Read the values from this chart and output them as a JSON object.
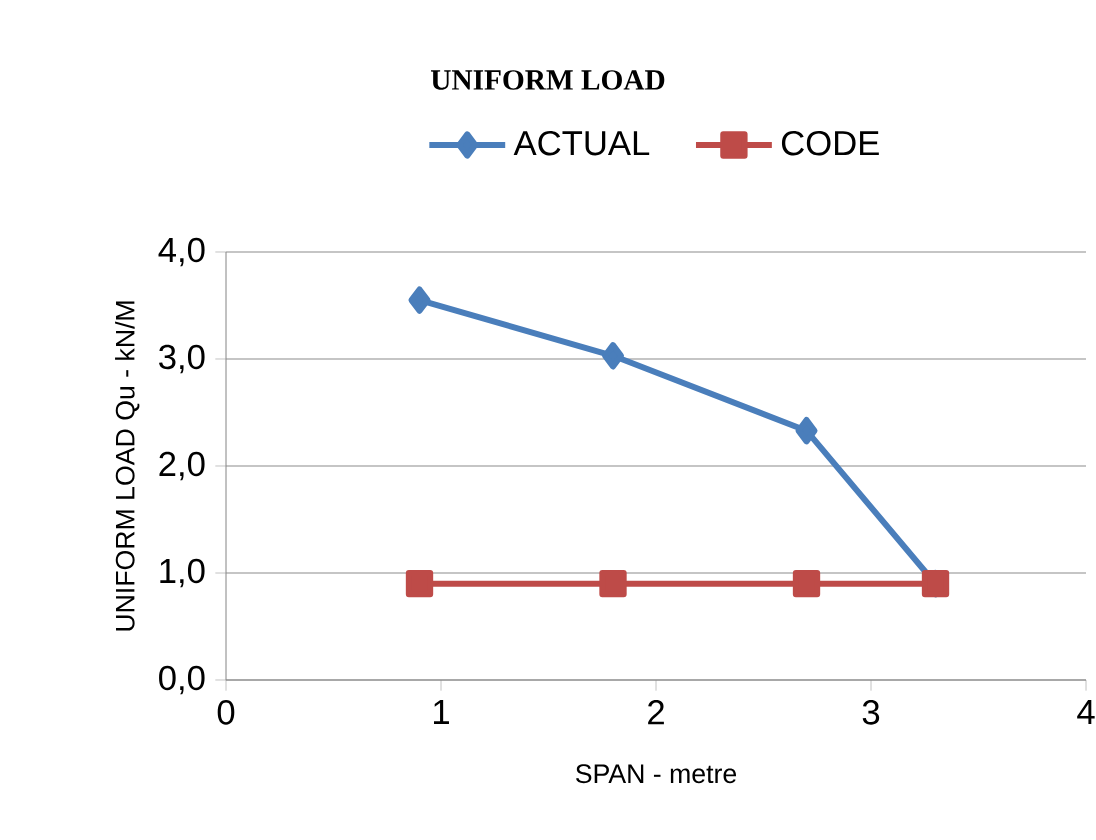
{
  "chart_data": {
    "type": "line",
    "title": "UNIFORM LOAD",
    "xlabel": "SPAN - metre",
    "ylabel": "UNIFORM LOAD Qu   -   kN/M",
    "series": [
      {
        "name": "ACTUAL",
        "color": "#4a7ebb",
        "marker": "diamond",
        "x": [
          0.9,
          1.8,
          2.7,
          3.3
        ],
        "values": [
          3.55,
          3.03,
          2.33,
          0.9
        ]
      },
      {
        "name": "CODE",
        "color": "#be4b48",
        "marker": "square",
        "x": [
          0.9,
          1.8,
          2.7,
          3.3
        ],
        "values": [
          0.9,
          0.9,
          0.9,
          0.9
        ]
      }
    ],
    "xlim": [
      0,
      4
    ],
    "xticks": [
      0,
      1,
      2,
      3,
      4
    ],
    "ylim": [
      0,
      4
    ],
    "yticks": [
      {
        "value": 0,
        "label": "0,0"
      },
      {
        "value": 1,
        "label": "1,0"
      },
      {
        "value": 2,
        "label": "2,0"
      },
      {
        "value": 3,
        "label": "3,0"
      },
      {
        "value": 4,
        "label": "4,0"
      }
    ],
    "grid": "y",
    "legend": "top",
    "line_style": "solid"
  }
}
